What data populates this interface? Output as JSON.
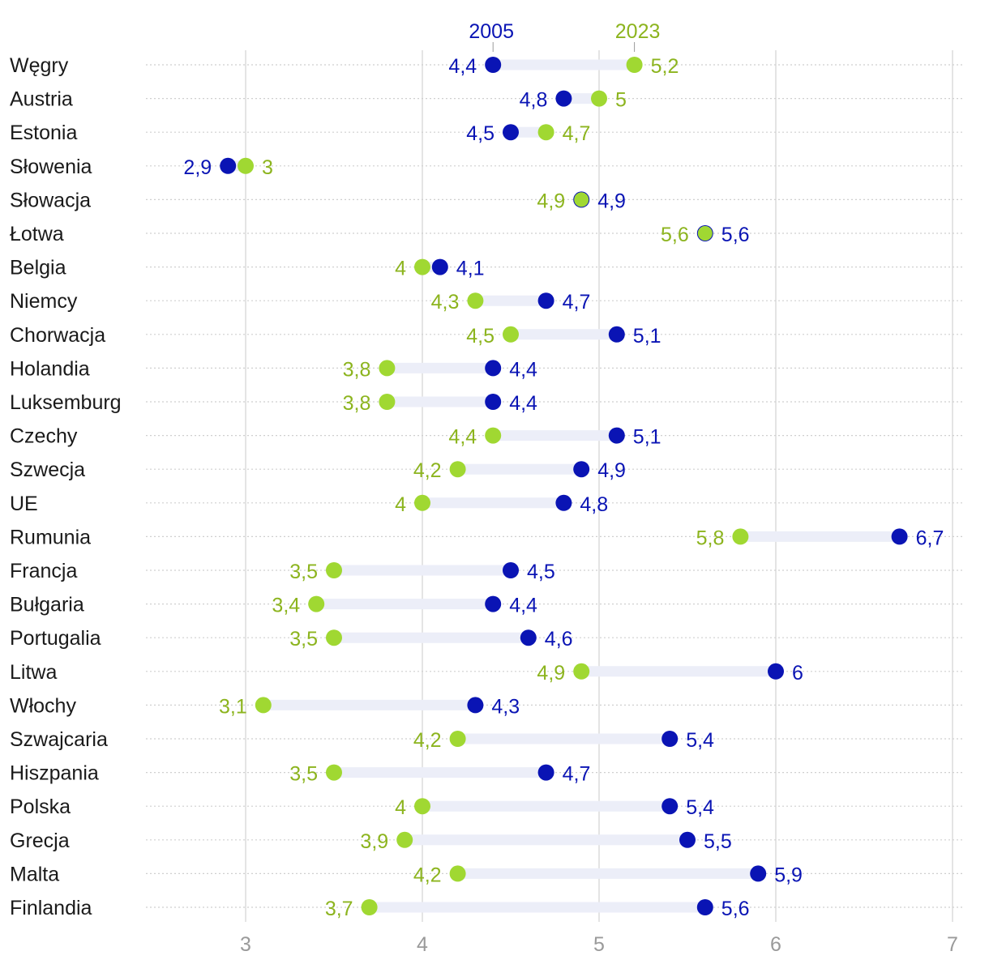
{
  "chart_data": {
    "type": "dumbbell",
    "title": "",
    "xlabel": "",
    "ylabel": "",
    "xlim": [
      2.45,
      7.05
    ],
    "xticks": [
      3,
      4,
      5,
      6,
      7
    ],
    "xtick_labels": [
      "3",
      "4",
      "5",
      "6",
      "7"
    ],
    "grid": true,
    "series": [
      {
        "name": "2005",
        "color": "#0a14b4"
      },
      {
        "name": "2023",
        "color": "#a0d832"
      }
    ],
    "label_colors": {
      "2005": "#0a14b4",
      "2023": "#8cb41e"
    },
    "categories": [
      "Węgry",
      "Austria",
      "Estonia",
      "Słowenia",
      "Słowacja",
      "Łotwa",
      "Belgia",
      "Niemcy",
      "Chorwacja",
      "Holandia",
      "Luksemburg",
      "Czechy",
      "Szwecja",
      "UE",
      "Rumunia",
      "Francja",
      "Bułgaria",
      "Portugalia",
      "Litwa",
      "Włochy",
      "Szwajcaria",
      "Hiszpania",
      "Polska",
      "Grecja",
      "Malta",
      "Finlandia"
    ],
    "values_2005": [
      4.4,
      4.8,
      4.5,
      2.9,
      4.9,
      5.6,
      4.1,
      4.7,
      5.1,
      4.4,
      4.4,
      5.1,
      4.9,
      4.8,
      6.7,
      4.5,
      4.4,
      4.6,
      6.0,
      4.3,
      5.4,
      4.7,
      5.4,
      5.5,
      5.9,
      5.6
    ],
    "values_2023": [
      5.2,
      5.0,
      4.7,
      3.0,
      4.9,
      5.6,
      4.0,
      4.3,
      4.5,
      3.8,
      3.8,
      4.4,
      4.2,
      4.0,
      5.8,
      3.5,
      3.4,
      3.5,
      4.9,
      3.1,
      4.2,
      3.5,
      4.0,
      3.9,
      4.2,
      3.7
    ],
    "labels_2005": [
      "4,4",
      "4,8",
      "4,5",
      "2,9",
      "4,9",
      "5,6",
      "4,1",
      "4,7",
      "5,1",
      "4,4",
      "4,4",
      "5,1",
      "4,9",
      "4,8",
      "6,7",
      "4,5",
      "4,4",
      "4,6",
      "6",
      "4,3",
      "5,4",
      "4,7",
      "5,4",
      "5,5",
      "5,9",
      "5,6"
    ],
    "labels_2023": [
      "5,2",
      "5",
      "4,7",
      "3",
      "4,9",
      "5,6",
      "4",
      "4,3",
      "4,5",
      "3,8",
      "3,8",
      "4,4",
      "4,2",
      "4",
      "5,8",
      "3,5",
      "3,4",
      "3,5",
      "4,9",
      "3,1",
      "4,2",
      "3,5",
      "4",
      "3,9",
      "4,2",
      "3,7"
    ]
  }
}
